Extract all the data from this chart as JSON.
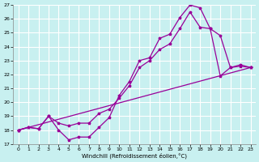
{
  "xlabel": "Windchill (Refroidissement éolien,°C)",
  "bg_color": "#c8f0f0",
  "grid_color": "#aadddd",
  "line_color": "#990099",
  "line1_x": [
    0,
    1,
    2,
    3,
    4,
    5,
    6,
    7,
    8,
    9,
    10,
    11,
    12,
    13,
    14,
    15,
    16,
    17,
    18,
    19,
    20,
    21,
    22,
    23
  ],
  "line1_y": [
    18.0,
    18.2,
    18.1,
    19.0,
    18.0,
    17.3,
    17.5,
    17.5,
    18.2,
    18.9,
    20.5,
    21.5,
    23.0,
    23.2,
    24.6,
    24.9,
    26.1,
    27.0,
    26.8,
    25.3,
    21.9,
    22.5,
    22.6,
    22.5
  ],
  "line2_x": [
    0,
    1,
    2,
    3,
    4,
    5,
    6,
    7,
    8,
    9,
    10,
    11,
    12,
    13,
    14,
    15,
    16,
    17,
    18,
    19,
    20,
    21,
    22,
    23
  ],
  "line2_y": [
    18.0,
    18.2,
    18.1,
    19.0,
    18.5,
    18.3,
    18.5,
    18.5,
    19.2,
    19.5,
    20.3,
    21.2,
    22.5,
    23.0,
    23.8,
    24.2,
    25.3,
    26.5,
    25.4,
    25.3,
    24.8,
    22.5,
    22.7,
    22.5
  ],
  "line3_x": [
    0,
    23
  ],
  "line3_y": [
    18.0,
    22.5
  ],
  "ylim": [
    17,
    27
  ],
  "xlim": [
    0,
    23
  ],
  "yticks": [
    17,
    18,
    19,
    20,
    21,
    22,
    23,
    24,
    25,
    26,
    27
  ],
  "xticks": [
    0,
    1,
    2,
    3,
    4,
    5,
    6,
    7,
    8,
    9,
    10,
    11,
    12,
    13,
    14,
    15,
    16,
    17,
    18,
    19,
    20,
    21,
    22,
    23
  ]
}
